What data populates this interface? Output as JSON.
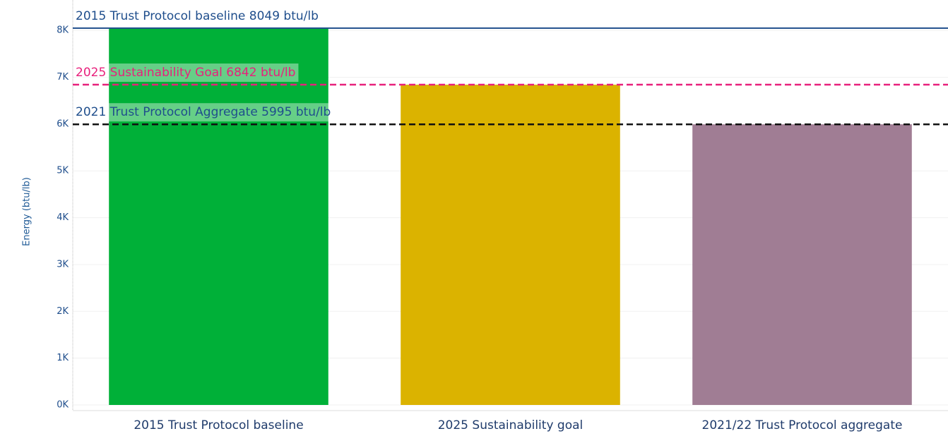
{
  "chart_data": {
    "type": "bar",
    "y_axis_label": "Energy (btu/lb)",
    "categories": [
      "2015 Trust Protocol baseline",
      "2025 Sustainability goal",
      "2021/22 Trust Protocol aggregate"
    ],
    "values": [
      8049,
      6842,
      5995
    ],
    "colors": [
      "#00b038",
      "#dbb300",
      "#a07d94"
    ],
    "ylim": [
      0,
      8500
    ],
    "yticks": [
      {
        "value": 0,
        "label": "0K"
      },
      {
        "value": 1000,
        "label": "1K"
      },
      {
        "value": 2000,
        "label": "2K"
      },
      {
        "value": 3000,
        "label": "3K"
      },
      {
        "value": 4000,
        "label": "4K"
      },
      {
        "value": 5000,
        "label": "5K"
      },
      {
        "value": 6000,
        "label": "6K"
      },
      {
        "value": 7000,
        "label": "7K"
      },
      {
        "value": 8000,
        "label": "8K"
      }
    ],
    "grid": true,
    "reference_lines": [
      {
        "label": "2015 Trust Protocol baseline 8049 btu/lb",
        "value": 8049,
        "color": "#1f4e8c",
        "style": "solid"
      },
      {
        "label": "2025 Sustainability Goal 6842 btu/lb",
        "value": 6842,
        "color": "#e8207c",
        "style": "dashed"
      },
      {
        "label": "2021 Trust Protocol  Aggregate 5995  btu/lb",
        "value": 5995,
        "color": "#111111",
        "style": "dashed"
      }
    ]
  }
}
